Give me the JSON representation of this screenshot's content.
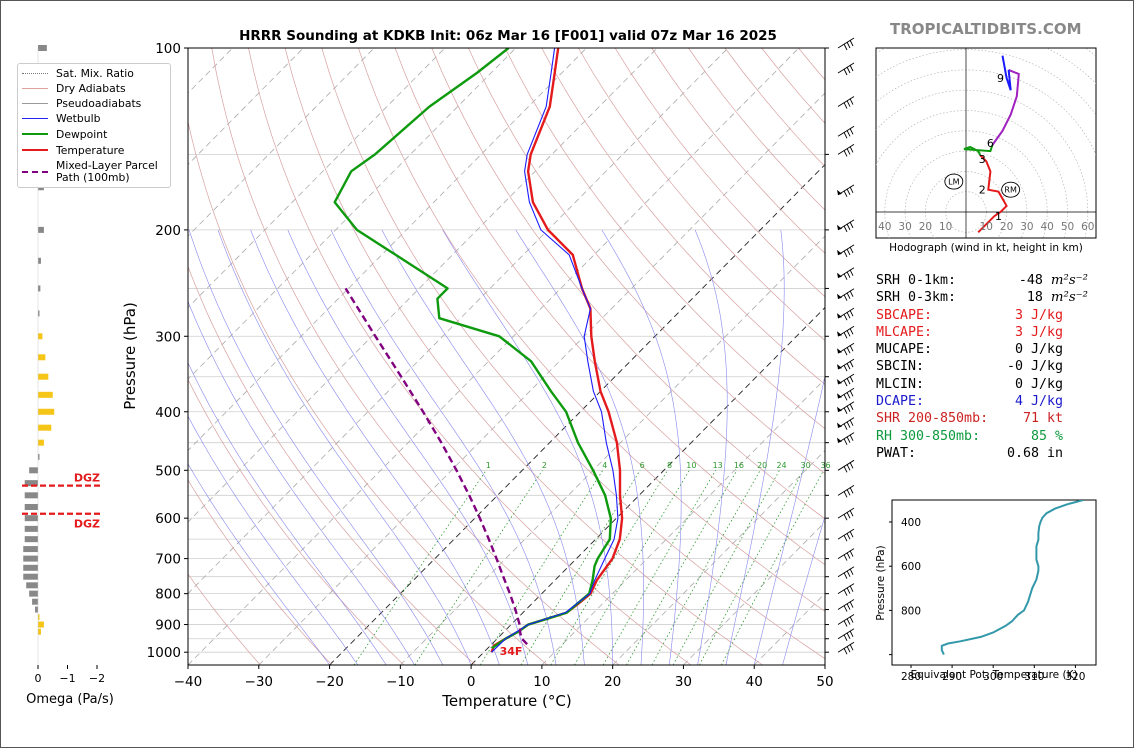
{
  "site_label": "TROPICALTIDBITS.COM",
  "chart_data": [
    {
      "type": "line",
      "kind": "skew-t",
      "title": "HRRR Sounding at KDKB Init: 06z Mar 16 [F001] valid 07z Mar 16 2025",
      "xlabel": "Temperature (°C)",
      "ylabel": "Pressure (hPa)",
      "xlim": [
        -40,
        50
      ],
      "ylim": [
        1050,
        100
      ],
      "y_scale": "log",
      "x_ticks": [
        "−40",
        "−30",
        "−20",
        "−10",
        "0",
        "10",
        "20",
        "30",
        "40",
        "50"
      ],
      "y_ticks": [
        "100",
        "200",
        "300",
        "400",
        "500",
        "600",
        "700",
        "800",
        "900",
        "1000"
      ],
      "mixing_ratio_labels": [
        "1",
        "2",
        "4",
        "6",
        "8",
        "10",
        "13",
        "16",
        "20",
        "24",
        "30",
        "36"
      ],
      "surface_temp_label": "34F",
      "series": [
        {
          "name": "Temperature",
          "color": "#e41a1c",
          "points": [
            [
              1000,
              1.1
            ],
            [
              975,
              0.5
            ],
            [
              950,
              1.2
            ],
            [
              925,
              2.0
            ],
            [
              900,
              2.4
            ],
            [
              880,
              4.3
            ],
            [
              860,
              6.2
            ],
            [
              830,
              6.6
            ],
            [
              800,
              6.9
            ],
            [
              760,
              5.9
            ],
            [
              700,
              5.1
            ],
            [
              650,
              3.4
            ],
            [
              600,
              0.8
            ],
            [
              550,
              -2.7
            ],
            [
              500,
              -6.2
            ],
            [
              450,
              -10.5
            ],
            [
              400,
              -16.0
            ],
            [
              370,
              -20.0
            ],
            [
              330,
              -25.0
            ],
            [
              300,
              -29.0
            ],
            [
              270,
              -33.0
            ],
            [
              250,
              -37.0
            ],
            [
              220,
              -43.0
            ],
            [
              200,
              -50.0
            ],
            [
              180,
              -56.0
            ],
            [
              160,
              -61.0
            ],
            [
              150,
              -63.0
            ],
            [
              125,
              -67.0
            ],
            [
              110,
              -71.0
            ],
            [
              100,
              -74.0
            ]
          ]
        },
        {
          "name": "Dewpoint",
          "color": "#0e9a0e",
          "points": [
            [
              985,
              0.6
            ],
            [
              950,
              1.2
            ],
            [
              925,
              2.0
            ],
            [
              900,
              2.4
            ],
            [
              880,
              4.3
            ],
            [
              860,
              6.2
            ],
            [
              800,
              6.7
            ],
            [
              760,
              5.3
            ],
            [
              720,
              3.6
            ],
            [
              700,
              3.0
            ],
            [
              650,
              2.0
            ],
            [
              600,
              -0.8
            ],
            [
              550,
              -4.8
            ],
            [
              500,
              -10.0
            ],
            [
              450,
              -16.0
            ],
            [
              400,
              -22.0
            ],
            [
              370,
              -27.0
            ],
            [
              330,
              -34.0
            ],
            [
              300,
              -42.0
            ],
            [
              280,
              -53.0
            ],
            [
              260,
              -56.0
            ],
            [
              250,
              -56.0
            ],
            [
              220,
              -68.0
            ],
            [
              200,
              -77.0
            ],
            [
              180,
              -84.0
            ],
            [
              160,
              -86.0
            ],
            [
              150,
              -85.0
            ],
            [
              125,
              -84.0
            ],
            [
              110,
              -82.0
            ],
            [
              100,
              -81.0
            ]
          ]
        },
        {
          "name": "Wetbulb",
          "color": "#1a1aff",
          "points": [
            [
              1000,
              1.1
            ],
            [
              950,
              1.2
            ],
            [
              900,
              2.4
            ],
            [
              860,
              6.0
            ],
            [
              800,
              6.8
            ],
            [
              760,
              5.6
            ],
            [
              700,
              4.0
            ],
            [
              650,
              2.6
            ],
            [
              600,
              0.2
            ],
            [
              550,
              -3.2
            ],
            [
              500,
              -7.2
            ],
            [
              450,
              -12.0
            ],
            [
              400,
              -17.0
            ],
            [
              370,
              -21.0
            ],
            [
              330,
              -26.0
            ],
            [
              300,
              -30.0
            ],
            [
              270,
              -33.0
            ],
            [
              250,
              -37.0
            ],
            [
              220,
              -43.5
            ],
            [
              200,
              -51.0
            ],
            [
              180,
              -56.5
            ],
            [
              160,
              -61.5
            ],
            [
              150,
              -63.5
            ],
            [
              125,
              -67.5
            ],
            [
              110,
              -71.5
            ],
            [
              100,
              -74.5
            ]
          ]
        },
        {
          "name": "Mixed-Layer Parcel Path (100mb)",
          "color": "#800080",
          "dashed": true,
          "points": [
            [
              970,
              5.0
            ],
            [
              950,
              3.5
            ],
            [
              930,
              2.5
            ],
            [
              900,
              1.2
            ],
            [
              850,
              -1.5
            ],
            [
              800,
              -4.5
            ],
            [
              750,
              -7.8
            ],
            [
              700,
              -11.3
            ],
            [
              650,
              -15.1
            ],
            [
              600,
              -19.3
            ],
            [
              550,
              -24.0
            ],
            [
              500,
              -29.3
            ],
            [
              450,
              -35.3
            ],
            [
              400,
              -42.2
            ],
            [
              350,
              -50.2
            ],
            [
              300,
              -59.5
            ],
            [
              250,
              -70.4
            ]
          ]
        }
      ],
      "legend": [
        "Sat. Mix. Ratio",
        "Dry Adiabats",
        "Pseudoadiabats",
        "Wetbulb",
        "Dewpoint",
        "Temperature",
        "Mixed-Layer Parcel Path (100mb)"
      ],
      "legend_placement": "left",
      "colors": {
        "dry_adiabat": "#d8a0a0",
        "pseudoadiabat": "#8888ee",
        "mixing_ratio": "#2e9a2e",
        "isotherm": "#333333"
      }
    },
    {
      "type": "bar",
      "orientation": "horizontal",
      "xlabel": "Omega (Pa/s)",
      "x_ticks": [
        "0",
        "−1",
        "−2"
      ],
      "dgz_label": "DGZ",
      "dgz_levels_hpa": [
        530,
        590
      ],
      "bars": [
        {
          "p": 100,
          "v": -0.3,
          "c": "gray"
        },
        {
          "p": 120,
          "v": -0.25,
          "c": "gray"
        },
        {
          "p": 145,
          "v": -0.25,
          "c": "gray"
        },
        {
          "p": 170,
          "v": -0.2,
          "c": "gray"
        },
        {
          "p": 200,
          "v": -0.2,
          "c": "gray"
        },
        {
          "p": 225,
          "v": -0.1,
          "c": "gray"
        },
        {
          "p": 250,
          "v": -0.08,
          "c": "gray"
        },
        {
          "p": 275,
          "v": -0.05,
          "c": "gray"
        },
        {
          "p": 300,
          "v": -0.15,
          "c": "yellow"
        },
        {
          "p": 325,
          "v": -0.25,
          "c": "yellow"
        },
        {
          "p": 350,
          "v": -0.35,
          "c": "yellow"
        },
        {
          "p": 375,
          "v": -0.5,
          "c": "yellow"
        },
        {
          "p": 400,
          "v": -0.55,
          "c": "yellow"
        },
        {
          "p": 425,
          "v": -0.45,
          "c": "yellow"
        },
        {
          "p": 450,
          "v": -0.2,
          "c": "yellow"
        },
        {
          "p": 475,
          "v": -0.05,
          "c": "gray"
        },
        {
          "p": 500,
          "v": 0.3,
          "c": "gray"
        },
        {
          "p": 525,
          "v": 0.45,
          "c": "gray"
        },
        {
          "p": 550,
          "v": 0.45,
          "c": "gray"
        },
        {
          "p": 575,
          "v": 0.45,
          "c": "gray"
        },
        {
          "p": 600,
          "v": 0.45,
          "c": "gray"
        },
        {
          "p": 625,
          "v": 0.45,
          "c": "gray"
        },
        {
          "p": 650,
          "v": 0.45,
          "c": "gray"
        },
        {
          "p": 675,
          "v": 0.5,
          "c": "gray"
        },
        {
          "p": 700,
          "v": 0.5,
          "c": "gray"
        },
        {
          "p": 725,
          "v": 0.5,
          "c": "gray"
        },
        {
          "p": 750,
          "v": 0.5,
          "c": "gray"
        },
        {
          "p": 775,
          "v": 0.4,
          "c": "gray"
        },
        {
          "p": 800,
          "v": 0.3,
          "c": "gray"
        },
        {
          "p": 825,
          "v": 0.2,
          "c": "gray"
        },
        {
          "p": 850,
          "v": 0.1,
          "c": "gray"
        },
        {
          "p": 875,
          "v": -0.05,
          "c": "yellow"
        },
        {
          "p": 900,
          "v": -0.2,
          "c": "yellow"
        },
        {
          "p": 925,
          "v": -0.1,
          "c": "yellow"
        }
      ]
    },
    {
      "type": "line",
      "kind": "hodograph",
      "title": "Hodograph (wind in kt, height in km)",
      "x_ticks": [
        "40",
        "30",
        "20",
        "10",
        "10",
        "20",
        "30",
        "40",
        "50",
        "60"
      ],
      "height_labels": [
        "1",
        "2",
        "3",
        "6",
        "9"
      ],
      "storm_motion_labels": [
        "LM",
        "RM"
      ],
      "colors": {
        "0-3km": "#e41a1c",
        "3-6km": "#0e9a0e",
        "6-9km": "#a020c0",
        "9+km": "#1a1aff"
      }
    },
    {
      "type": "line",
      "kind": "theta-e profile",
      "xlabel": "Equivalent Pot. Temperature (K)",
      "ylabel": "Pressure (hPa)",
      "x_ticks": [
        "280",
        "290",
        "300",
        "310",
        "320"
      ],
      "y_ticks": [
        "400",
        "600",
        "800"
      ],
      "color": "#3399aa",
      "points": [
        [
          1000,
          288
        ],
        [
          980,
          287.5
        ],
        [
          960,
          287.5
        ],
        [
          950,
          289
        ],
        [
          940,
          292
        ],
        [
          920,
          297
        ],
        [
          900,
          300
        ],
        [
          870,
          303
        ],
        [
          850,
          304.5
        ],
        [
          820,
          306
        ],
        [
          800,
          307.5
        ],
        [
          760,
          308.5
        ],
        [
          700,
          309.5
        ],
        [
          660,
          310.5
        ],
        [
          620,
          311
        ],
        [
          600,
          311
        ],
        [
          570,
          310.5
        ],
        [
          540,
          310.5
        ],
        [
          510,
          310.5
        ],
        [
          480,
          311
        ],
        [
          450,
          311
        ],
        [
          420,
          311.2
        ],
        [
          400,
          311.5
        ],
        [
          380,
          312
        ],
        [
          360,
          313
        ],
        [
          340,
          315
        ],
        [
          320,
          318
        ],
        [
          310,
          320
        ],
        [
          300,
          322
        ]
      ]
    }
  ],
  "parameters": [
    {
      "label": "SRH 0-1km:",
      "value": "-48",
      "unit": "m²s⁻²",
      "color": "#000000"
    },
    {
      "label": "SRH 0-3km:",
      "value": "18",
      "unit": "m²s⁻²",
      "color": "#000000"
    },
    {
      "label": "SBCAPE:",
      "value": "3 J/kg",
      "unit": "",
      "color": "#e41a1c"
    },
    {
      "label": "MLCAPE:",
      "value": "3 J/kg",
      "unit": "",
      "color": "#e41a1c"
    },
    {
      "label": "MUCAPE:",
      "value": "0 J/kg",
      "unit": "",
      "color": "#000000"
    },
    {
      "label": "SBCIN:",
      "value": "-0 J/kg",
      "unit": "",
      "color": "#000000"
    },
    {
      "label": "MLCIN:",
      "value": "0 J/kg",
      "unit": "",
      "color": "#000000"
    },
    {
      "label": "DCAPE:",
      "value": "4 J/kg",
      "unit": "",
      "color": "#1a1acc"
    },
    {
      "label": "SHR 200-850mb:",
      "value": "71 kt",
      "unit": "",
      "color": "#cc2222"
    },
    {
      "label": "RH 300-850mb:",
      "value": "85 %",
      "unit": "",
      "color": "#0e9a3e"
    },
    {
      "label": "PWAT:",
      "value": "0.68 in",
      "unit": "",
      "color": "#000000"
    }
  ]
}
